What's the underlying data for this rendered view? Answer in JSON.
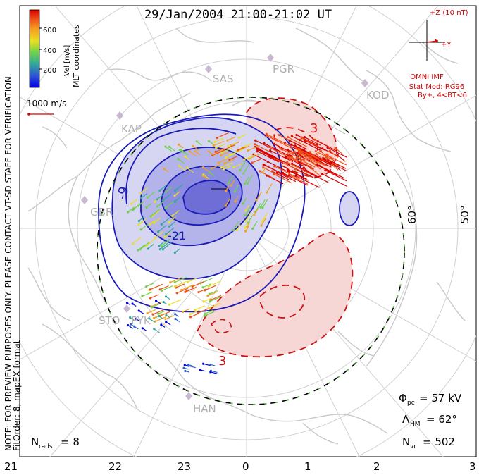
{
  "title": "29/Jan/2004 21:00-21:02 UT",
  "colorbar": {
    "label": "Vel [m/s]",
    "ticks": [
      "600",
      "400",
      "200"
    ],
    "colors": [
      "#0000ee",
      "#3060d0",
      "#2fa89a",
      "#6fd24a",
      "#e8e020",
      "#f5a020",
      "#f05018",
      "#d90000"
    ]
  },
  "coords_label": "MLT coordinates",
  "vector_scale": "1000 m/s",
  "side_note": "NOTE: FOR PREVIEW PURPOSES ONLY. PLEASE CONTACT VT-SD STAFF FOR VERIFICATION.",
  "fit_note": "FitOrder: 8, mapEX format",
  "imf": {
    "z_label": "+Z (10 nT)",
    "y_label": "+Y",
    "source": "OMNI IMF",
    "model": "Stat Mod: RG96",
    "cond": "By+, 4<BT<6"
  },
  "stations": [
    "SAS",
    "PGR",
    "KOD",
    "KAP",
    "GBR",
    "STO",
    "PYK",
    "HAN"
  ],
  "latitude_labels": [
    "60°",
    "50°"
  ],
  "contour_labels": [
    "-9",
    "-21",
    "3",
    "3"
  ],
  "mlt_labels": [
    "21",
    "22",
    "23",
    "0",
    "1",
    "2",
    "3"
  ],
  "stats": {
    "phi_label": "Φ",
    "phi_sub": "pc",
    "phi_value": "= 57 kV",
    "lambda_label": "Λ",
    "lambda_sub": "HM",
    "lambda_value": "= 62°",
    "nvc_label": "N",
    "nvc_sub": "vc",
    "nvc_value": "= 502",
    "nrads_label": "N",
    "nrads_sub": "rads",
    "nrads_value": "= 8"
  }
}
